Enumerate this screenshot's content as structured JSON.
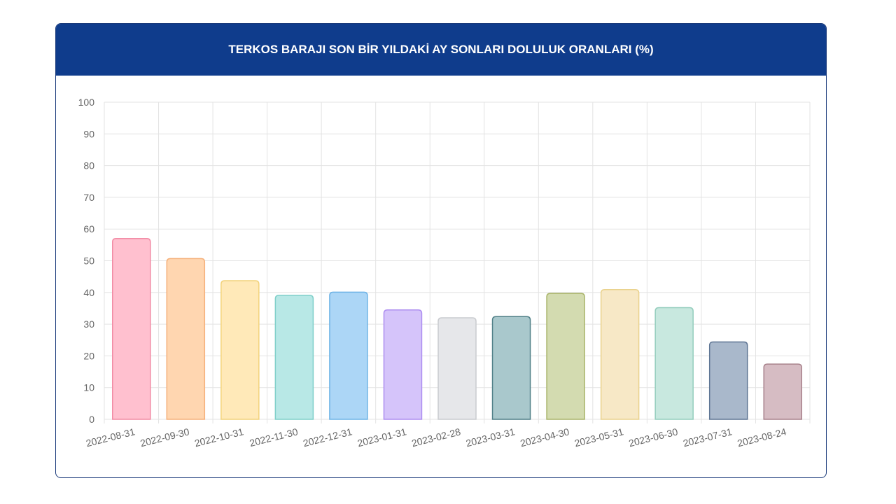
{
  "chart_data": {
    "type": "bar",
    "title": "TERKOS BARAJI SON BİR YILDAKİ AY SONLARI DOLULUK ORANLARI (%)",
    "categories": [
      "2022-08-31",
      "2022-09-30",
      "2022-10-31",
      "2022-11-30",
      "2022-12-31",
      "2023-01-31",
      "2023-02-28",
      "2023-03-31",
      "2023-04-30",
      "2023-05-31",
      "2023-06-30",
      "2023-07-31",
      "2023-08-24"
    ],
    "values": [
      57,
      50.7,
      43.7,
      39.1,
      40.1,
      34.5,
      32,
      32.4,
      39.7,
      40.9,
      35.2,
      24.4,
      17.4
    ],
    "ylim": [
      0,
      100
    ],
    "yticks": [
      0,
      10,
      20,
      30,
      40,
      50,
      60,
      70,
      80,
      90,
      100
    ],
    "grid": true,
    "legend": "none",
    "bar_fill_colors": [
      "#ffc0cf",
      "#ffd6b0",
      "#ffe9b8",
      "#b8e8e6",
      "#acd6f6",
      "#d5c4fa",
      "#e6e7ea",
      "#a9c8cc",
      "#d3dbb0",
      "#f7e8c6",
      "#c8e8df",
      "#a9b8cb",
      "#d6bcc3"
    ],
    "bar_stroke_colors": [
      "#f28aa4",
      "#f5b07a",
      "#f2d27a",
      "#7fcfc9",
      "#6db3e6",
      "#ad8df0",
      "#c9cbcf",
      "#4f7f87",
      "#a9b46a",
      "#ead28d",
      "#94cdbd",
      "#5e7594",
      "#a8828c"
    ]
  }
}
